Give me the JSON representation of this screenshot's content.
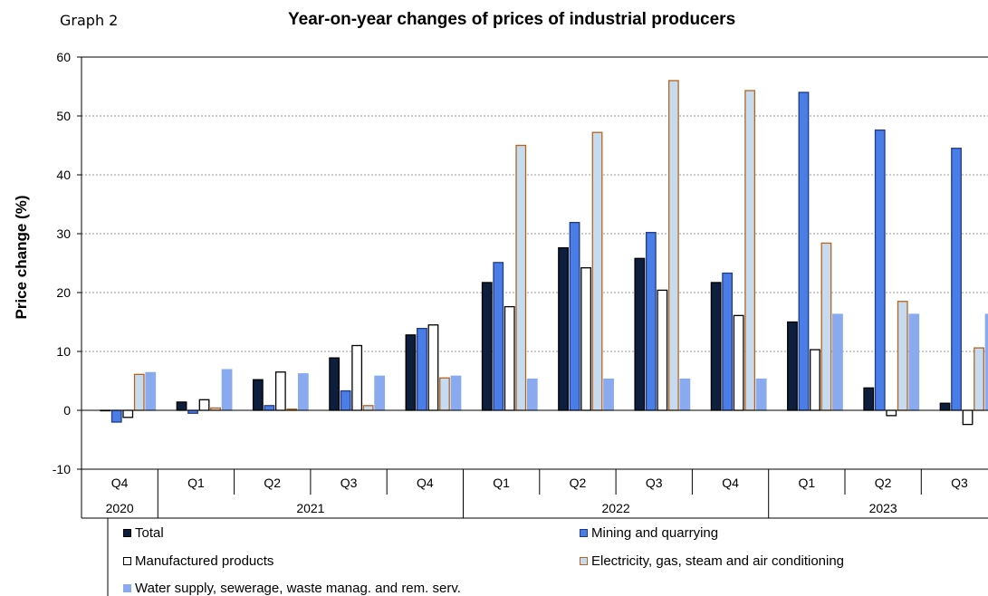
{
  "graph_label": "Graph 2",
  "chart_data": {
    "type": "bar",
    "title": "Year-on-year changes of prices of industrial producers",
    "ylabel": "Price change (%)",
    "xlabel": "",
    "ylim": [
      -10,
      60
    ],
    "yticks": [
      -10,
      0,
      10,
      20,
      30,
      40,
      50,
      60
    ],
    "grid": true,
    "legend_position": "bottom",
    "categories": [
      "Q4",
      "Q1",
      "Q2",
      "Q3",
      "Q4",
      "Q1",
      "Q2",
      "Q3",
      "Q4",
      "Q1",
      "Q2",
      "Q3"
    ],
    "years": [
      {
        "label": "2020",
        "count": 1
      },
      {
        "label": "2021",
        "count": 4
      },
      {
        "label": "2022",
        "count": 4
      },
      {
        "label": "2023",
        "count": 3
      }
    ],
    "series": [
      {
        "name": "Total",
        "color": "#0d1f3c",
        "edge": "#000000",
        "values": [
          0.0,
          1.4,
          5.2,
          8.9,
          12.8,
          21.7,
          27.6,
          25.8,
          21.7,
          15.0,
          3.8,
          1.2
        ]
      },
      {
        "name": "Mining and quarrying",
        "color": "#4a7ee6",
        "edge": "#1f3a8a",
        "values": [
          -2.0,
          -0.5,
          0.8,
          3.3,
          13.9,
          25.1,
          31.9,
          30.2,
          23.3,
          54.0,
          47.6,
          44.5
        ]
      },
      {
        "name": "Manufactured products",
        "color": "#ffffff",
        "edge": "#000000",
        "values": [
          -1.2,
          1.8,
          6.5,
          11.0,
          14.5,
          17.6,
          24.2,
          20.4,
          16.1,
          10.3,
          -0.9,
          -2.4
        ]
      },
      {
        "name": "Electricity, gas, steam and air conditioning",
        "color": "#c6daf0",
        "edge": "#b5651d",
        "values": [
          6.1,
          0.4,
          0.2,
          0.8,
          5.5,
          45.0,
          47.2,
          56.0,
          54.3,
          28.4,
          18.5,
          10.6
        ]
      },
      {
        "name": "Water supply, sewerage,  waste manag. and rem. serv.",
        "color": "#8aaaf0",
        "edge": "#8aaaf0",
        "values": [
          6.4,
          6.9,
          6.2,
          5.8,
          5.8,
          5.3,
          5.3,
          5.3,
          5.3,
          16.3,
          16.3,
          16.3
        ]
      }
    ]
  }
}
